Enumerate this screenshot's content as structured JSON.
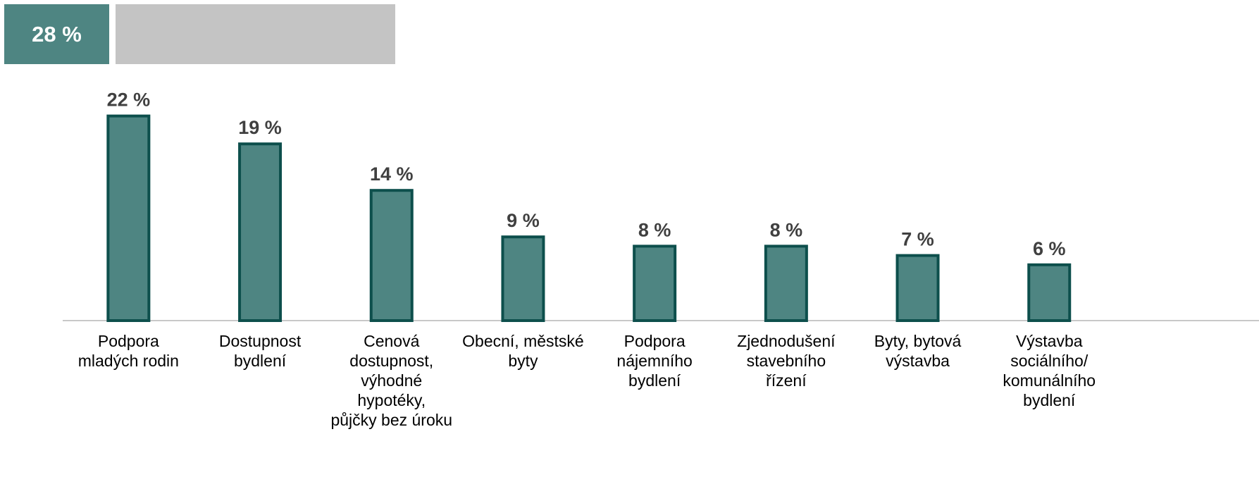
{
  "summary": "28 %",
  "chart_data": {
    "type": "bar",
    "categories": [
      "Podpora\nmladých rodin",
      "Dostupnost\nbydlení",
      "Cenová\ndostupnost,\nvýhodné\nhypotéky,\npůjčky bez úroku",
      "Obecní, městské\nbyty",
      "Podpora\nnájemního\nbydlení",
      "Zjednodušení\nstavebního\nřízení",
      "Byty, bytová\nvýstavba",
      "Výstavba\nsociálního/\nkomunálního\nbydlení"
    ],
    "values": [
      22,
      19,
      14,
      9,
      8,
      8,
      7,
      6
    ],
    "value_labels": [
      "22 %",
      "19 %",
      "14 %",
      "9 %",
      "8 %",
      "8 %",
      "7 %",
      "6 %"
    ],
    "color": "#4e8582",
    "edge_color": "#0d4f4c",
    "ylim": [
      0,
      25
    ]
  }
}
